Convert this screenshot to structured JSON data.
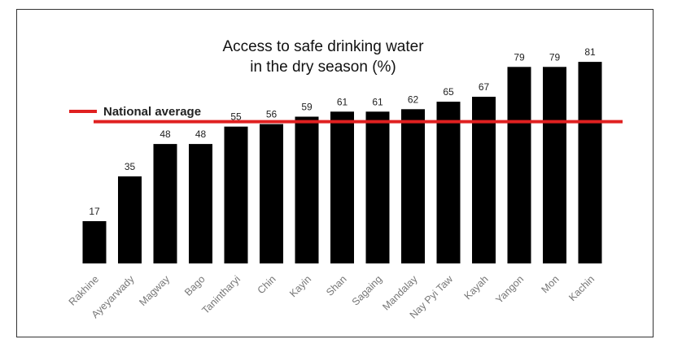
{
  "chart_data": {
    "type": "bar",
    "title": [
      "Access to safe drinking water",
      "in the dry season (%)"
    ],
    "categories": [
      "Rakhine",
      "Ayeyarwady",
      "Magway",
      "Bago",
      "Tanintharyi",
      "Chin",
      "Kayin",
      "Shan",
      "Sagaing",
      "Mandalay",
      "Nay Pyi Taw",
      "Kayah",
      "Yangon",
      "Mon",
      "Kachin"
    ],
    "values": [
      17,
      35,
      48,
      48,
      55,
      56,
      59,
      61,
      61,
      62,
      65,
      67,
      79,
      79,
      81
    ],
    "reference_line": {
      "label": "National average",
      "value": 57
    },
    "ylim": [
      0,
      90
    ],
    "grid": false,
    "legend_position": "top-left",
    "colors": {
      "bar": "#000000",
      "reference_line": "#e02020",
      "value_label": "#222222",
      "tick_label": "#777777"
    }
  }
}
